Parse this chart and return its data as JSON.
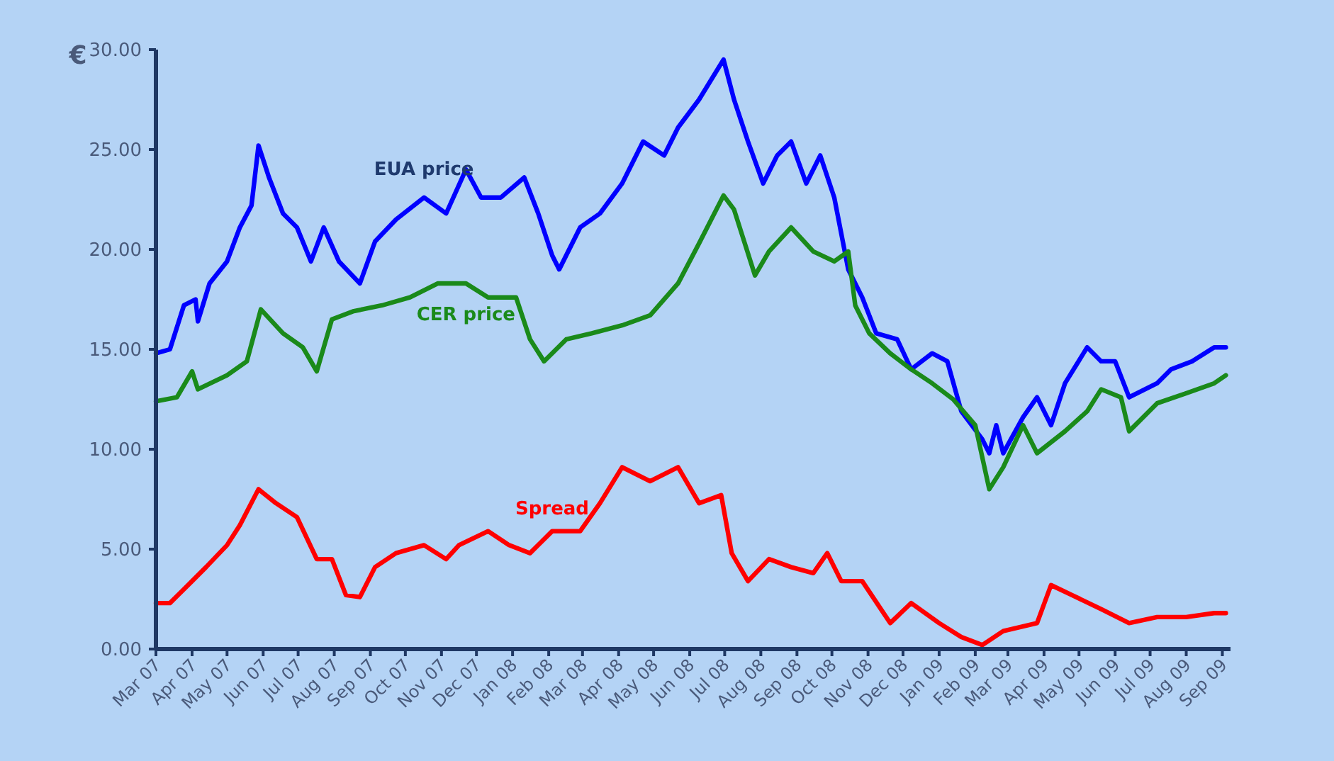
{
  "chart_data": {
    "type": "line",
    "ylabel": "€",
    "x": [
      "2007-03-01",
      "2007-03-13",
      "2007-03-25",
      "2007-04-04",
      "2007-04-06",
      "2007-04-16",
      "2007-05-01",
      "2007-05-12",
      "2007-05-22",
      "2007-05-28",
      "2007-06-06",
      "2007-06-18",
      "2007-06-30",
      "2007-07-12",
      "2007-07-23",
      "2007-08-05",
      "2007-08-23",
      "2007-09-05",
      "2007-09-23",
      "2007-10-17",
      "2007-11-05",
      "2007-11-22",
      "2007-12-05",
      "2007-12-22",
      "2008-01-11",
      "2008-01-23",
      "2008-02-04",
      "2008-02-10",
      "2008-02-28",
      "2008-03-16",
      "2008-04-04",
      "2008-04-22",
      "2008-05-10",
      "2008-05-22",
      "2008-06-09",
      "2008-06-30",
      "2008-07-09",
      "2008-07-21",
      "2008-08-03",
      "2008-08-15",
      "2008-08-27",
      "2008-09-09",
      "2008-09-21",
      "2008-10-03",
      "2008-10-15",
      "2008-10-27",
      "2008-11-08",
      "2008-11-26",
      "2008-12-08",
      "2008-12-26",
      "2009-01-08",
      "2009-01-20",
      "2009-02-07",
      "2009-02-13",
      "2009-02-19",
      "2009-02-25",
      "2009-03-14",
      "2009-03-26",
      "2009-04-07",
      "2009-04-19",
      "2009-05-08",
      "2009-05-20",
      "2009-06-01",
      "2009-06-13",
      "2009-07-07",
      "2009-07-19",
      "2009-08-06",
      "2009-08-25",
      "2009-09-04"
    ],
    "series": [
      {
        "name": "EUA price",
        "color": "#0000ff",
        "values": [
          14.8,
          15.0,
          17.2,
          17.5,
          16.4,
          18.3,
          19.4,
          21.1,
          22.2,
          25.2,
          23.6,
          21.8,
          21.1,
          19.4,
          21.1,
          19.4,
          18.3,
          20.4,
          21.5,
          22.6,
          21.8,
          24.0,
          22.6,
          22.6,
          23.6,
          21.8,
          19.7,
          19.0,
          21.1,
          21.8,
          23.3,
          25.4,
          24.7,
          26.1,
          27.5,
          29.5,
          27.5,
          25.4,
          23.3,
          24.7,
          25.4,
          23.3,
          24.7,
          22.6,
          19.0,
          17.6,
          15.8,
          15.5,
          14.0,
          14.8,
          14.4,
          11.9,
          10.5,
          9.8,
          11.2,
          9.8,
          11.6,
          12.6,
          11.2,
          13.3,
          15.1,
          14.4,
          14.4,
          12.6,
          13.3,
          14.0,
          14.4,
          15.1,
          15.1
        ]
      },
      {
        "name": "CER price",
        "color": "#1a8a1a",
        "x": [
          "2007-03-01",
          "2007-03-19",
          "2007-04-01",
          "2007-04-06",
          "2007-05-01",
          "2007-05-18",
          "2007-05-30",
          "2007-06-18",
          "2007-07-05",
          "2007-07-17",
          "2007-07-30",
          "2007-08-17",
          "2007-09-11",
          "2007-10-05",
          "2007-10-29",
          "2007-11-22",
          "2007-12-11",
          "2008-01-04",
          "2008-01-16",
          "2008-01-28",
          "2008-02-16",
          "2008-03-09",
          "2008-04-04",
          "2008-04-28",
          "2008-05-22",
          "2008-06-09",
          "2008-06-30",
          "2008-07-09",
          "2008-07-27",
          "2008-08-08",
          "2008-08-27",
          "2008-09-15",
          "2008-10-03",
          "2008-10-15",
          "2008-10-21",
          "2008-11-02",
          "2008-11-20",
          "2008-12-08",
          "2008-12-26",
          "2009-01-13",
          "2009-02-01",
          "2009-02-13",
          "2009-02-25",
          "2009-03-14",
          "2009-03-26",
          "2009-04-19",
          "2009-05-08",
          "2009-05-20",
          "2009-06-06",
          "2009-06-13",
          "2009-07-07",
          "2009-08-01",
          "2009-08-25",
          "2009-09-04"
        ],
        "values": [
          12.4,
          12.6,
          13.9,
          13.0,
          13.7,
          14.4,
          17.0,
          15.8,
          15.1,
          13.9,
          16.5,
          16.9,
          17.2,
          17.6,
          18.3,
          18.3,
          17.6,
          17.6,
          15.5,
          14.4,
          15.5,
          15.8,
          16.2,
          16.7,
          18.3,
          20.3,
          22.7,
          22.0,
          18.7,
          19.9,
          21.1,
          19.9,
          19.4,
          19.9,
          17.2,
          15.8,
          14.8,
          14.0,
          13.3,
          12.5,
          11.2,
          8.0,
          9.1,
          11.2,
          9.8,
          10.9,
          11.9,
          13.0,
          12.6,
          10.9,
          12.3,
          12.8,
          13.3,
          13.7
        ]
      },
      {
        "name": "Spread",
        "color": "#ff0000",
        "x": [
          "2007-03-01",
          "2007-03-13",
          "2007-04-01",
          "2007-04-13",
          "2007-05-01",
          "2007-05-12",
          "2007-05-28",
          "2007-06-12",
          "2007-06-30",
          "2007-07-17",
          "2007-07-30",
          "2007-08-11",
          "2007-08-23",
          "2007-09-05",
          "2007-09-23",
          "2007-10-17",
          "2007-11-05",
          "2007-11-16",
          "2007-12-11",
          "2007-12-29",
          "2008-01-16",
          "2008-02-04",
          "2008-02-28",
          "2008-03-16",
          "2008-04-04",
          "2008-04-28",
          "2008-05-22",
          "2008-06-09",
          "2008-06-28",
          "2008-07-07",
          "2008-07-21",
          "2008-08-08",
          "2008-08-27",
          "2008-09-15",
          "2008-09-27",
          "2008-10-09",
          "2008-10-27",
          "2008-11-20",
          "2008-12-08",
          "2009-01-01",
          "2009-01-20",
          "2009-02-07",
          "2009-02-25",
          "2009-03-26",
          "2009-04-07",
          "2009-04-25",
          "2009-05-20",
          "2009-06-13",
          "2009-07-07",
          "2009-08-01",
          "2009-08-25",
          "2009-09-04"
        ],
        "values": [
          2.3,
          2.3,
          3.4,
          4.1,
          5.2,
          6.2,
          8.0,
          7.3,
          6.6,
          4.5,
          4.5,
          2.7,
          2.6,
          4.1,
          4.8,
          5.2,
          4.5,
          5.2,
          5.9,
          5.2,
          4.8,
          5.9,
          5.9,
          7.3,
          9.1,
          8.4,
          9.1,
          7.3,
          7.7,
          4.8,
          3.4,
          4.5,
          4.1,
          3.8,
          4.8,
          3.4,
          3.4,
          1.3,
          2.3,
          1.3,
          0.6,
          0.2,
          0.9,
          1.3,
          3.2,
          2.7,
          2.0,
          1.3,
          1.6,
          1.6,
          1.8,
          1.8
        ]
      }
    ],
    "xlim": [
      "2007-03-01",
      "2009-09-08"
    ],
    "xticks": [
      {
        "value": "2007-03-01",
        "label": "Mar 07"
      },
      {
        "value": "2007-04-01",
        "label": "Apr 07"
      },
      {
        "value": "2007-05-01",
        "label": "May 07"
      },
      {
        "value": "2007-06-01",
        "label": "Jun 07"
      },
      {
        "value": "2007-07-01",
        "label": "Jul 07"
      },
      {
        "value": "2007-08-01",
        "label": "Aug 07"
      },
      {
        "value": "2007-09-01",
        "label": "Sep 07"
      },
      {
        "value": "2007-10-01",
        "label": "Oct 07"
      },
      {
        "value": "2007-11-01",
        "label": "Nov 07"
      },
      {
        "value": "2007-12-01",
        "label": "Dec 07"
      },
      {
        "value": "2008-01-01",
        "label": "Jan 08"
      },
      {
        "value": "2008-02-01",
        "label": "Feb 08"
      },
      {
        "value": "2008-03-01",
        "label": "Mar 08"
      },
      {
        "value": "2008-04-01",
        "label": "Apr 08"
      },
      {
        "value": "2008-05-01",
        "label": "May 08"
      },
      {
        "value": "2008-06-01",
        "label": "Jun 08"
      },
      {
        "value": "2008-07-01",
        "label": "Jul 08"
      },
      {
        "value": "2008-08-01",
        "label": "Aug 08"
      },
      {
        "value": "2008-09-01",
        "label": "Sep 08"
      },
      {
        "value": "2008-10-01",
        "label": "Oct 08"
      },
      {
        "value": "2008-11-01",
        "label": "Nov 08"
      },
      {
        "value": "2008-12-01",
        "label": "Dec 08"
      },
      {
        "value": "2009-01-01",
        "label": "Jan 09"
      },
      {
        "value": "2009-02-01",
        "label": "Feb 09"
      },
      {
        "value": "2009-03-01",
        "label": "Mar 09"
      },
      {
        "value": "2009-04-01",
        "label": "Apr 09"
      },
      {
        "value": "2009-05-01",
        "label": "May 09"
      },
      {
        "value": "2009-06-01",
        "label": "Jun 09"
      },
      {
        "value": "2009-07-01",
        "label": "Jul 09"
      },
      {
        "value": "2009-08-01",
        "label": "Aug 09"
      },
      {
        "value": "2009-09-01",
        "label": "Sep 09"
      }
    ],
    "ylim": [
      0,
      30
    ],
    "yticks": [
      {
        "value": 0,
        "label": "0.00"
      },
      {
        "value": 5,
        "label": "5.00"
      },
      {
        "value": 10,
        "label": "10.00"
      },
      {
        "value": 15,
        "label": "15.00"
      },
      {
        "value": 20,
        "label": "20.00"
      },
      {
        "value": 25,
        "label": "25.00"
      },
      {
        "value": 30,
        "label": "30.00"
      }
    ],
    "grid": false,
    "legend": false,
    "marker": "none",
    "line_style": "solid"
  }
}
